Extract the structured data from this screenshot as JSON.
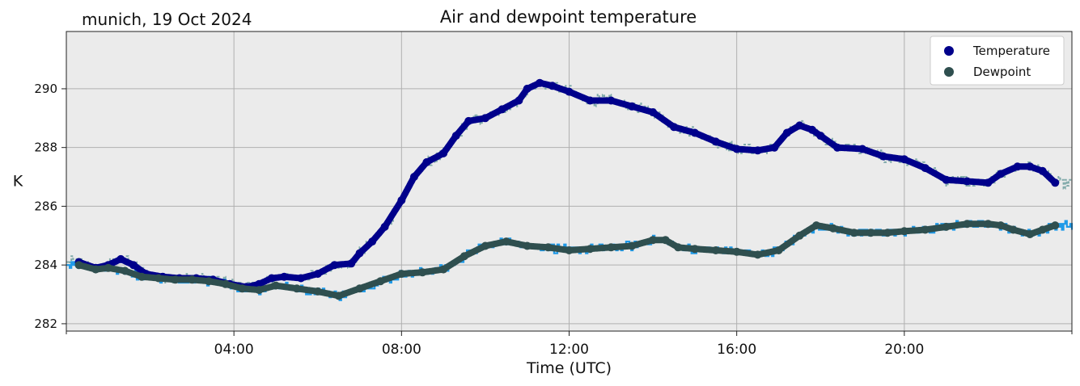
{
  "header": {
    "location_date": "munich, 19 Oct 2024"
  },
  "chart_data": {
    "type": "line",
    "title": "Air and dewpoint temperature",
    "xlabel": "Time (UTC)",
    "ylabel": "K",
    "x_unit": "hour_utc",
    "xlim": [
      0,
      24
    ],
    "ylim": [
      281.75,
      291.95
    ],
    "xticks": [
      4,
      8,
      12,
      16,
      20
    ],
    "xtick_labels": [
      "04:00",
      "08:00",
      "12:00",
      "16:00",
      "20:00"
    ],
    "yticks": [
      282,
      284,
      286,
      288,
      290
    ],
    "ytick_labels": [
      "282",
      "284",
      "286",
      "288",
      "290"
    ],
    "grid": true,
    "legend_position": "top-right",
    "series": [
      {
        "name": "Temperature",
        "color": "#00008b",
        "raw_color": "#7fa9a9",
        "marker": "circle",
        "x": [
          0.3,
          0.7,
          1.0,
          1.3,
          1.6,
          1.9,
          2.3,
          2.7,
          3.1,
          3.5,
          3.9,
          4.3,
          4.6,
          4.9,
          5.2,
          5.6,
          6.0,
          6.4,
          6.8,
          7.0,
          7.3,
          7.6,
          8.0,
          8.3,
          8.6,
          9.0,
          9.3,
          9.6,
          10.0,
          10.4,
          10.8,
          11.0,
          11.3,
          11.6,
          12.0,
          12.5,
          13.0,
          13.5,
          14.0,
          14.5,
          15.0,
          15.5,
          16.0,
          16.5,
          16.9,
          17.2,
          17.5,
          17.8,
          18.0,
          18.4,
          19.0,
          19.5,
          20.0,
          20.5,
          21.0,
          21.5,
          22.0,
          22.3,
          22.7,
          23.0,
          23.3,
          23.6
        ],
        "y": [
          284.1,
          283.9,
          284.0,
          284.2,
          284.0,
          283.7,
          283.6,
          283.55,
          283.55,
          283.5,
          283.35,
          283.25,
          283.35,
          283.55,
          283.6,
          283.55,
          283.7,
          284.0,
          284.05,
          284.4,
          284.8,
          285.3,
          286.2,
          287.0,
          287.5,
          287.8,
          288.4,
          288.9,
          289.0,
          289.3,
          289.6,
          290.0,
          290.2,
          290.1,
          289.9,
          289.6,
          289.6,
          289.4,
          289.2,
          288.7,
          288.5,
          288.2,
          287.95,
          287.9,
          288.0,
          288.5,
          288.75,
          288.6,
          288.4,
          288.0,
          287.95,
          287.7,
          287.6,
          287.3,
          286.9,
          286.85,
          286.8,
          287.1,
          287.35,
          287.35,
          287.2,
          286.8
        ]
      },
      {
        "name": "Dewpoint",
        "color": "#2f4f4f",
        "raw_color": "#1f9ae8",
        "marker": "circle",
        "x": [
          0.3,
          0.7,
          1.0,
          1.4,
          1.8,
          2.2,
          2.6,
          3.0,
          3.4,
          3.8,
          4.2,
          4.6,
          5.0,
          5.5,
          6.0,
          6.5,
          7.0,
          7.5,
          8.0,
          8.5,
          9.0,
          9.5,
          10.0,
          10.5,
          11.0,
          11.5,
          12.0,
          12.5,
          13.0,
          13.5,
          14.0,
          14.3,
          14.6,
          15.0,
          15.5,
          16.0,
          16.5,
          17.0,
          17.5,
          17.9,
          18.3,
          18.8,
          19.2,
          19.6,
          20.0,
          20.5,
          21.0,
          21.5,
          22.0,
          22.3,
          22.6,
          23.0,
          23.3,
          23.6
        ],
        "y": [
          284.0,
          283.85,
          283.9,
          283.8,
          283.6,
          283.55,
          283.5,
          283.5,
          283.45,
          283.35,
          283.2,
          283.15,
          283.3,
          283.2,
          283.1,
          282.95,
          283.2,
          283.45,
          283.7,
          283.75,
          283.85,
          284.3,
          284.65,
          284.8,
          284.65,
          284.6,
          284.5,
          284.55,
          284.6,
          284.65,
          284.85,
          284.85,
          284.6,
          284.55,
          284.5,
          284.45,
          284.35,
          284.5,
          285.0,
          285.35,
          285.25,
          285.1,
          285.1,
          285.1,
          285.15,
          285.2,
          285.3,
          285.4,
          285.4,
          285.35,
          285.2,
          285.05,
          285.2,
          285.35
        ]
      }
    ]
  }
}
